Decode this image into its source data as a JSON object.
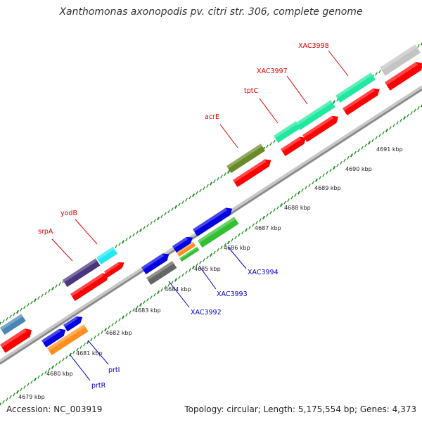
{
  "title": "Xanthomonas axonopodis pv. citri str. 306, complete genome",
  "accession": "Accession: NC_003919",
  "summary": "Topology: circular; Length: 5,175,554 bp; Genes: 4,373",
  "ticks": [
    "4679 kbp",
    "4680 kbp",
    "4681 kbp",
    "4682 kbp",
    "4683 kbp",
    "4684 kbp",
    "4685 kbp",
    "4686 kbp",
    "4687 kbp",
    "4688 kbp",
    "4689 kbp",
    "4690 kbp",
    "4691 kbp"
  ],
  "gene_labels_top": [
    "srpA",
    "yodB",
    "acrE",
    "tptC",
    "XAC3997",
    "XAC3998"
  ],
  "gene_labels_bottom": [
    "prtR",
    "prtI",
    "XAC3992",
    "XAC3993",
    "XAC3994"
  ],
  "colors": {
    "cds": "#ff0000",
    "top_label": "#e00000",
    "bottom_label": "#0000cc",
    "top_dots": "#1f8f1f",
    "bottom_dots": "#1f8f1f",
    "backbone": "#888888"
  }
}
